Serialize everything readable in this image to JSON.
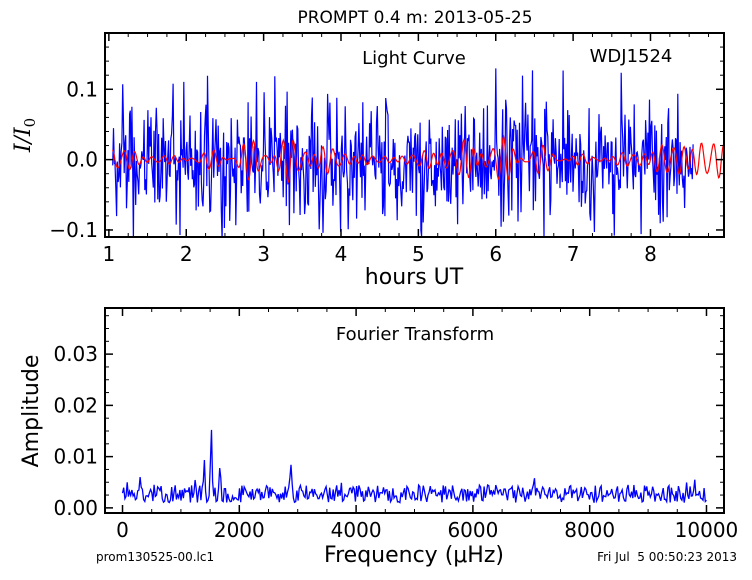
{
  "figure": {
    "title": "PROMPT 0.4 m:  2013-05-25",
    "footer_left": "prom130525-00.lc1",
    "footer_right": "Fri Jul  5 00:50:23 2013"
  },
  "chart_data": [
    {
      "type": "line",
      "title": "Light Curve",
      "annotation": "WDJ1524",
      "xlabel": "hours UT",
      "ylabel": "I/I0",
      "xlim": [
        0.95,
        8.95
      ],
      "ylim": [
        -0.11,
        0.18
      ],
      "xticks": [
        1,
        2,
        3,
        4,
        5,
        6,
        7,
        8
      ],
      "yticks": [
        -0.1,
        0.0,
        0.1
      ],
      "ytick_labels": [
        "−0.1",
        "0.0",
        "0.1"
      ],
      "grid": false,
      "series": [
        {
          "color": "#0000ff",
          "x_range": [
            1.05,
            8.55
          ],
          "n_points": 760,
          "amplitude": 0.045,
          "extremes": [
            0.13,
            -0.11
          ],
          "note": "noisy photometry"
        },
        {
          "color": "#ff0000",
          "x_range": [
            1.05,
            8.95
          ],
          "n_points": 800,
          "amplitude": 0.03,
          "note": "smooth model"
        }
      ]
    },
    {
      "type": "line",
      "title": "Fourier Transform",
      "xlabel": "Frequency (μHz)",
      "ylabel": "Amplitude",
      "xlim": [
        -300,
        10300
      ],
      "ylim": [
        -0.001,
        0.039
      ],
      "xticks": [
        0,
        2000,
        4000,
        6000,
        8000,
        10000
      ],
      "yticks": [
        0.0,
        0.01,
        0.02,
        0.03
      ],
      "ytick_labels": [
        "0.00",
        "0.01",
        "0.02",
        "0.03"
      ],
      "grid": false,
      "series": [
        {
          "color": "#0000ff",
          "x_range": [
            0,
            10000
          ],
          "n_points": 500,
          "baseline_range": [
            0.001,
            0.0045
          ],
          "peaks": [
            {
              "x": 1520,
              "y": 0.0155
            },
            {
              "x": 1400,
              "y": 0.0095
            },
            {
              "x": 1670,
              "y": 0.0085
            },
            {
              "x": 1240,
              "y": 0.0055
            },
            {
              "x": 2880,
              "y": 0.009
            },
            {
              "x": 80,
              "y": 0.005
            },
            {
              "x": 300,
              "y": 0.006
            },
            {
              "x": 7050,
              "y": 0.006
            },
            {
              "x": 9800,
              "y": 0.0055
            }
          ]
        }
      ]
    }
  ]
}
